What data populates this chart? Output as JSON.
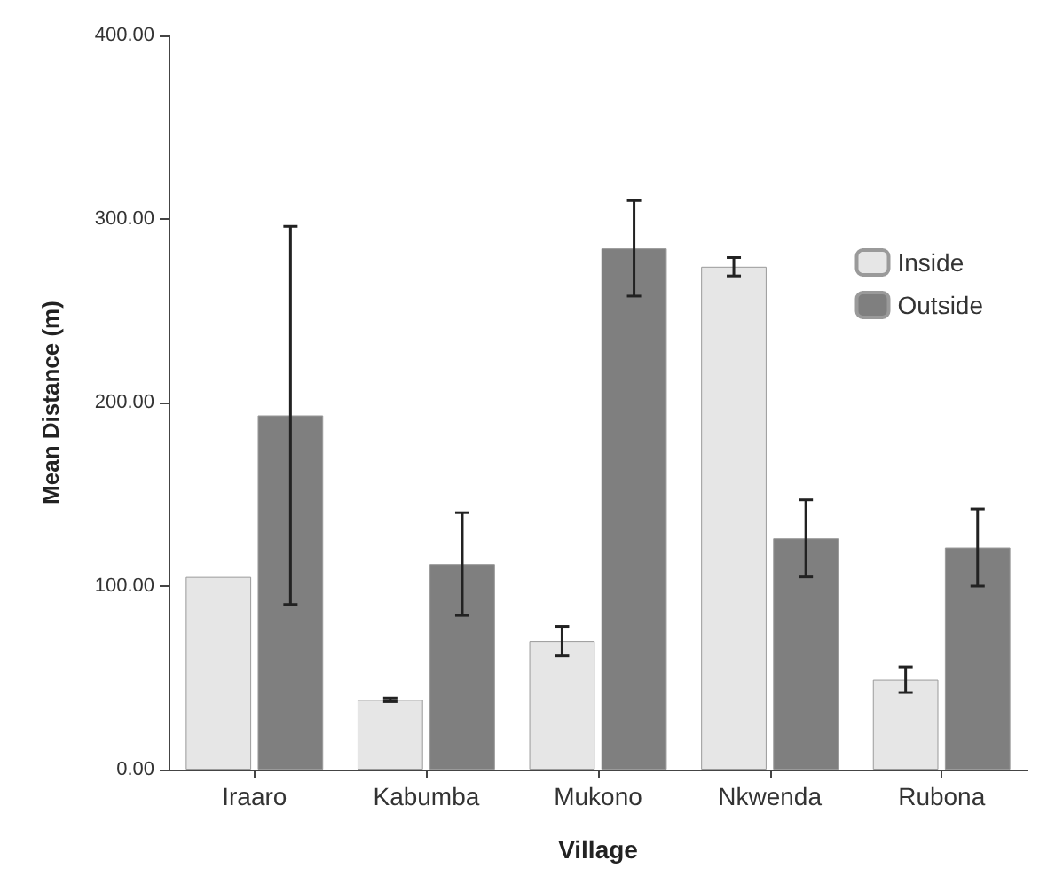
{
  "chart_data": {
    "type": "bar",
    "xlabel": "Village",
    "ylabel": "Mean Distance (m)",
    "categories": [
      "Iraaro",
      "Kabumba",
      "Mukono",
      "Nkwenda",
      "Rubona"
    ],
    "series": [
      {
        "name": "Inside",
        "color": "#e6e6e6",
        "values": [
          105,
          38,
          70,
          274,
          49
        ],
        "errors": [
          null,
          1,
          8,
          5,
          7
        ]
      },
      {
        "name": "Outside",
        "color": "#7f7f7f",
        "values": [
          193,
          112,
          284,
          126,
          121
        ],
        "errors": [
          103,
          28,
          26,
          21,
          21
        ]
      }
    ],
    "ylim": [
      0,
      400
    ],
    "yticks": [
      {
        "value": 0,
        "label": "0.00"
      },
      {
        "value": 100,
        "label": "100.00"
      },
      {
        "value": 200,
        "label": "200.00"
      },
      {
        "value": 300,
        "label": "300.00"
      },
      {
        "value": 400,
        "label": "400.00"
      }
    ],
    "grid": false,
    "legend": "top right"
  }
}
